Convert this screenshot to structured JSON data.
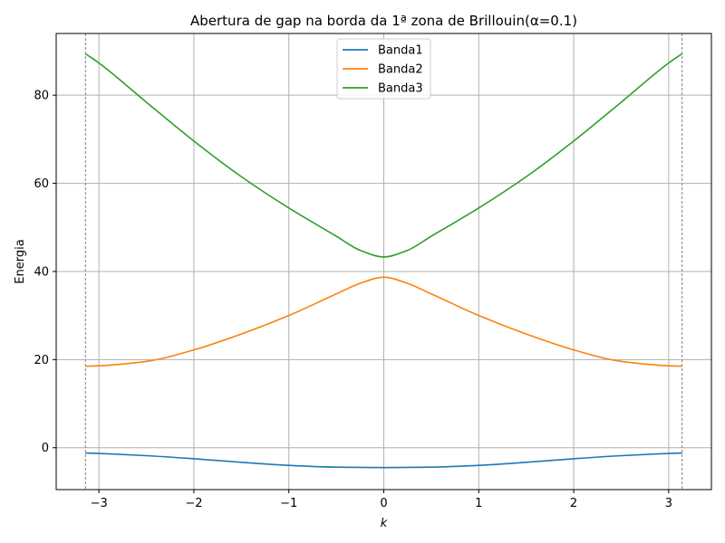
{
  "chart_data": {
    "type": "line",
    "title": "Abertura de gap na borda da 1ª zona de Brillouin(α=0.1)",
    "xlabel": "k",
    "ylabel": "Energia",
    "xlim": [
      -3.45,
      3.45
    ],
    "ylim": [
      -9.5,
      94
    ],
    "xticks": [
      -3,
      -2,
      -1,
      0,
      1,
      2,
      3
    ],
    "xtick_labels": [
      "−3",
      "−2",
      "−1",
      "0",
      "1",
      "2",
      "3"
    ],
    "yticks": [
      0,
      20,
      40,
      60,
      80
    ],
    "ytick_labels": [
      "0",
      "20",
      "40",
      "60",
      "80"
    ],
    "grid": true,
    "legend_position": "top-center",
    "vertical_dashed_lines": [
      -3.1416,
      3.1416
    ],
    "series": [
      {
        "name": "Banda1",
        "color": "#1f77b4",
        "x": [
          -3.1416,
          -3.0,
          -2.5,
          -2.0,
          -1.5,
          -1.0,
          -0.5,
          0.0,
          0.5,
          1.0,
          1.5,
          2.0,
          2.5,
          3.0,
          3.1416
        ],
        "y": [
          -1.2,
          -1.3,
          -1.8,
          -2.5,
          -3.3,
          -4.0,
          -4.4,
          -4.5,
          -4.4,
          -4.0,
          -3.3,
          -2.5,
          -1.8,
          -1.3,
          -1.2
        ]
      },
      {
        "name": "Banda2",
        "color": "#ff7f0e",
        "x": [
          -3.1416,
          -3.0,
          -2.5,
          -2.0,
          -1.5,
          -1.0,
          -0.5,
          -0.25,
          0.0,
          0.25,
          0.5,
          1.0,
          1.5,
          2.0,
          2.5,
          3.0,
          3.1416
        ],
        "y": [
          18.5,
          18.6,
          19.6,
          22.2,
          25.8,
          30.0,
          34.9,
          37.3,
          38.7,
          37.3,
          34.9,
          30.0,
          25.8,
          22.2,
          19.6,
          18.6,
          18.5
        ],
        "smooth_interp": "pchip"
      },
      {
        "name": "Banda3",
        "color": "#2ca02c",
        "x": [
          -3.1416,
          -3.0,
          -2.5,
          -2.0,
          -1.5,
          -1.0,
          -0.5,
          -0.25,
          0.0,
          0.25,
          0.5,
          1.0,
          1.5,
          2.0,
          2.5,
          3.0,
          3.1416
        ],
        "y": [
          89.4,
          87.3,
          78.4,
          69.6,
          61.5,
          54.4,
          48.0,
          44.8,
          43.3,
          44.8,
          48.0,
          54.4,
          61.5,
          69.6,
          78.4,
          87.3,
          89.4
        ]
      }
    ]
  }
}
